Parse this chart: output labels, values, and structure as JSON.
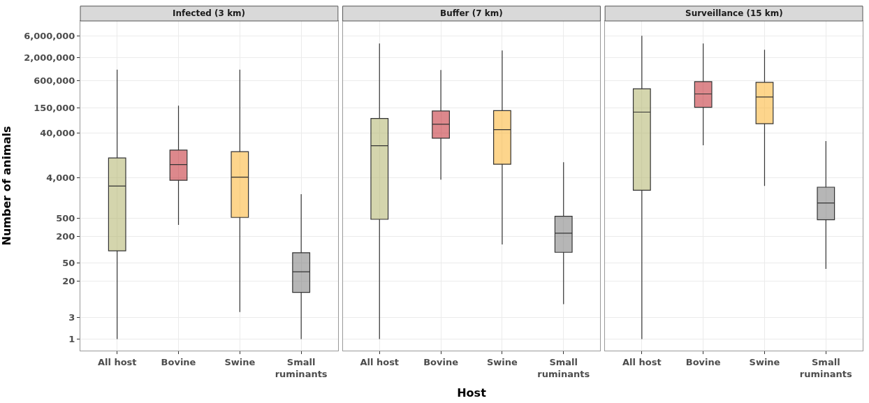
{
  "chart_data": [
    {
      "type": "box",
      "title": "Infected (3 km)",
      "ylabel": "Number of animals",
      "categories": [
        "All host",
        "Bovine",
        "Swine",
        "Small\nruminants"
      ],
      "colors": [
        "#b0b26a",
        "#c1272d",
        "#fbb32e",
        "#7a7a7a"
      ],
      "log": "y",
      "grid": true,
      "ylim": [
        0.55,
        13000000
      ],
      "yticks": [
        1,
        3,
        20,
        50,
        200,
        500,
        {
          "value": 4000,
          "label": "4,000"
        },
        {
          "value": 40000,
          "label": "40,000"
        },
        {
          "value": 150000,
          "label": "150,000"
        },
        {
          "value": 600000,
          "label": "600,000"
        },
        {
          "value": 2000000,
          "label": "2,000,000"
        },
        {
          "value": 6000000,
          "label": "6,000,000"
        }
      ],
      "boxes": [
        {
          "low": 1,
          "q1": 94,
          "median": 2640,
          "q3": 11200,
          "high": 1060000
        },
        {
          "low": 357,
          "q1": 3560,
          "median": 7980,
          "q3": 16800,
          "high": 166000
        },
        {
          "low": 4,
          "q1": 525,
          "median": 4170,
          "q3": 15500,
          "high": 1060000
        },
        {
          "low": 1,
          "q1": 11,
          "median": 32,
          "q3": 85,
          "high": 1740
        }
      ]
    },
    {
      "type": "box",
      "title": "Buffer (7 km)",
      "xlabel": "Host",
      "categories": [
        "All host",
        "Bovine",
        "Swine",
        "Small\nruminants"
      ],
      "colors": [
        "#b0b26a",
        "#c1272d",
        "#fbb32e",
        "#7a7a7a"
      ],
      "log": "y",
      "grid": true,
      "tick_labels": "x",
      "ylim": [
        0.55,
        13000000
      ],
      "boxes": [
        {
          "low": 1,
          "q1": 476,
          "median": 21100,
          "q3": 85700,
          "high": 4080000
        },
        {
          "low": 3650,
          "q1": 30900,
          "median": 63500,
          "q3": 126000,
          "high": 1040000
        },
        {
          "low": 130,
          "q1": 8090,
          "median": 48300,
          "q3": 128000,
          "high": 2850000
        },
        {
          "low": 6,
          "q1": 87,
          "median": 232,
          "q3": 557,
          "high": 9010
        }
      ]
    },
    {
      "type": "box",
      "title": "Surveillance (15 km)",
      "categories": [
        "All host",
        "Bovine",
        "Swine",
        "Small\nruminants"
      ],
      "colors": [
        "#b0b26a",
        "#c1272d",
        "#fbb32e",
        "#7a7a7a"
      ],
      "log": "y",
      "grid": true,
      "tick_labels": "x",
      "ylim": [
        0.55,
        13000000
      ],
      "boxes": [
        {
          "low": 1,
          "q1": 2130,
          "median": 119000,
          "q3": 394000,
          "high": 6060000
        },
        {
          "low": 21600,
          "q1": 152000,
          "median": 303000,
          "q3": 571000,
          "high": 4080000
        },
        {
          "low": 2640,
          "q1": 65200,
          "median": 259000,
          "q3": 551000,
          "high": 2950000
        },
        {
          "low": 37,
          "q1": 465,
          "median": 1100,
          "q3": 2490,
          "high": 26800
        }
      ]
    }
  ]
}
